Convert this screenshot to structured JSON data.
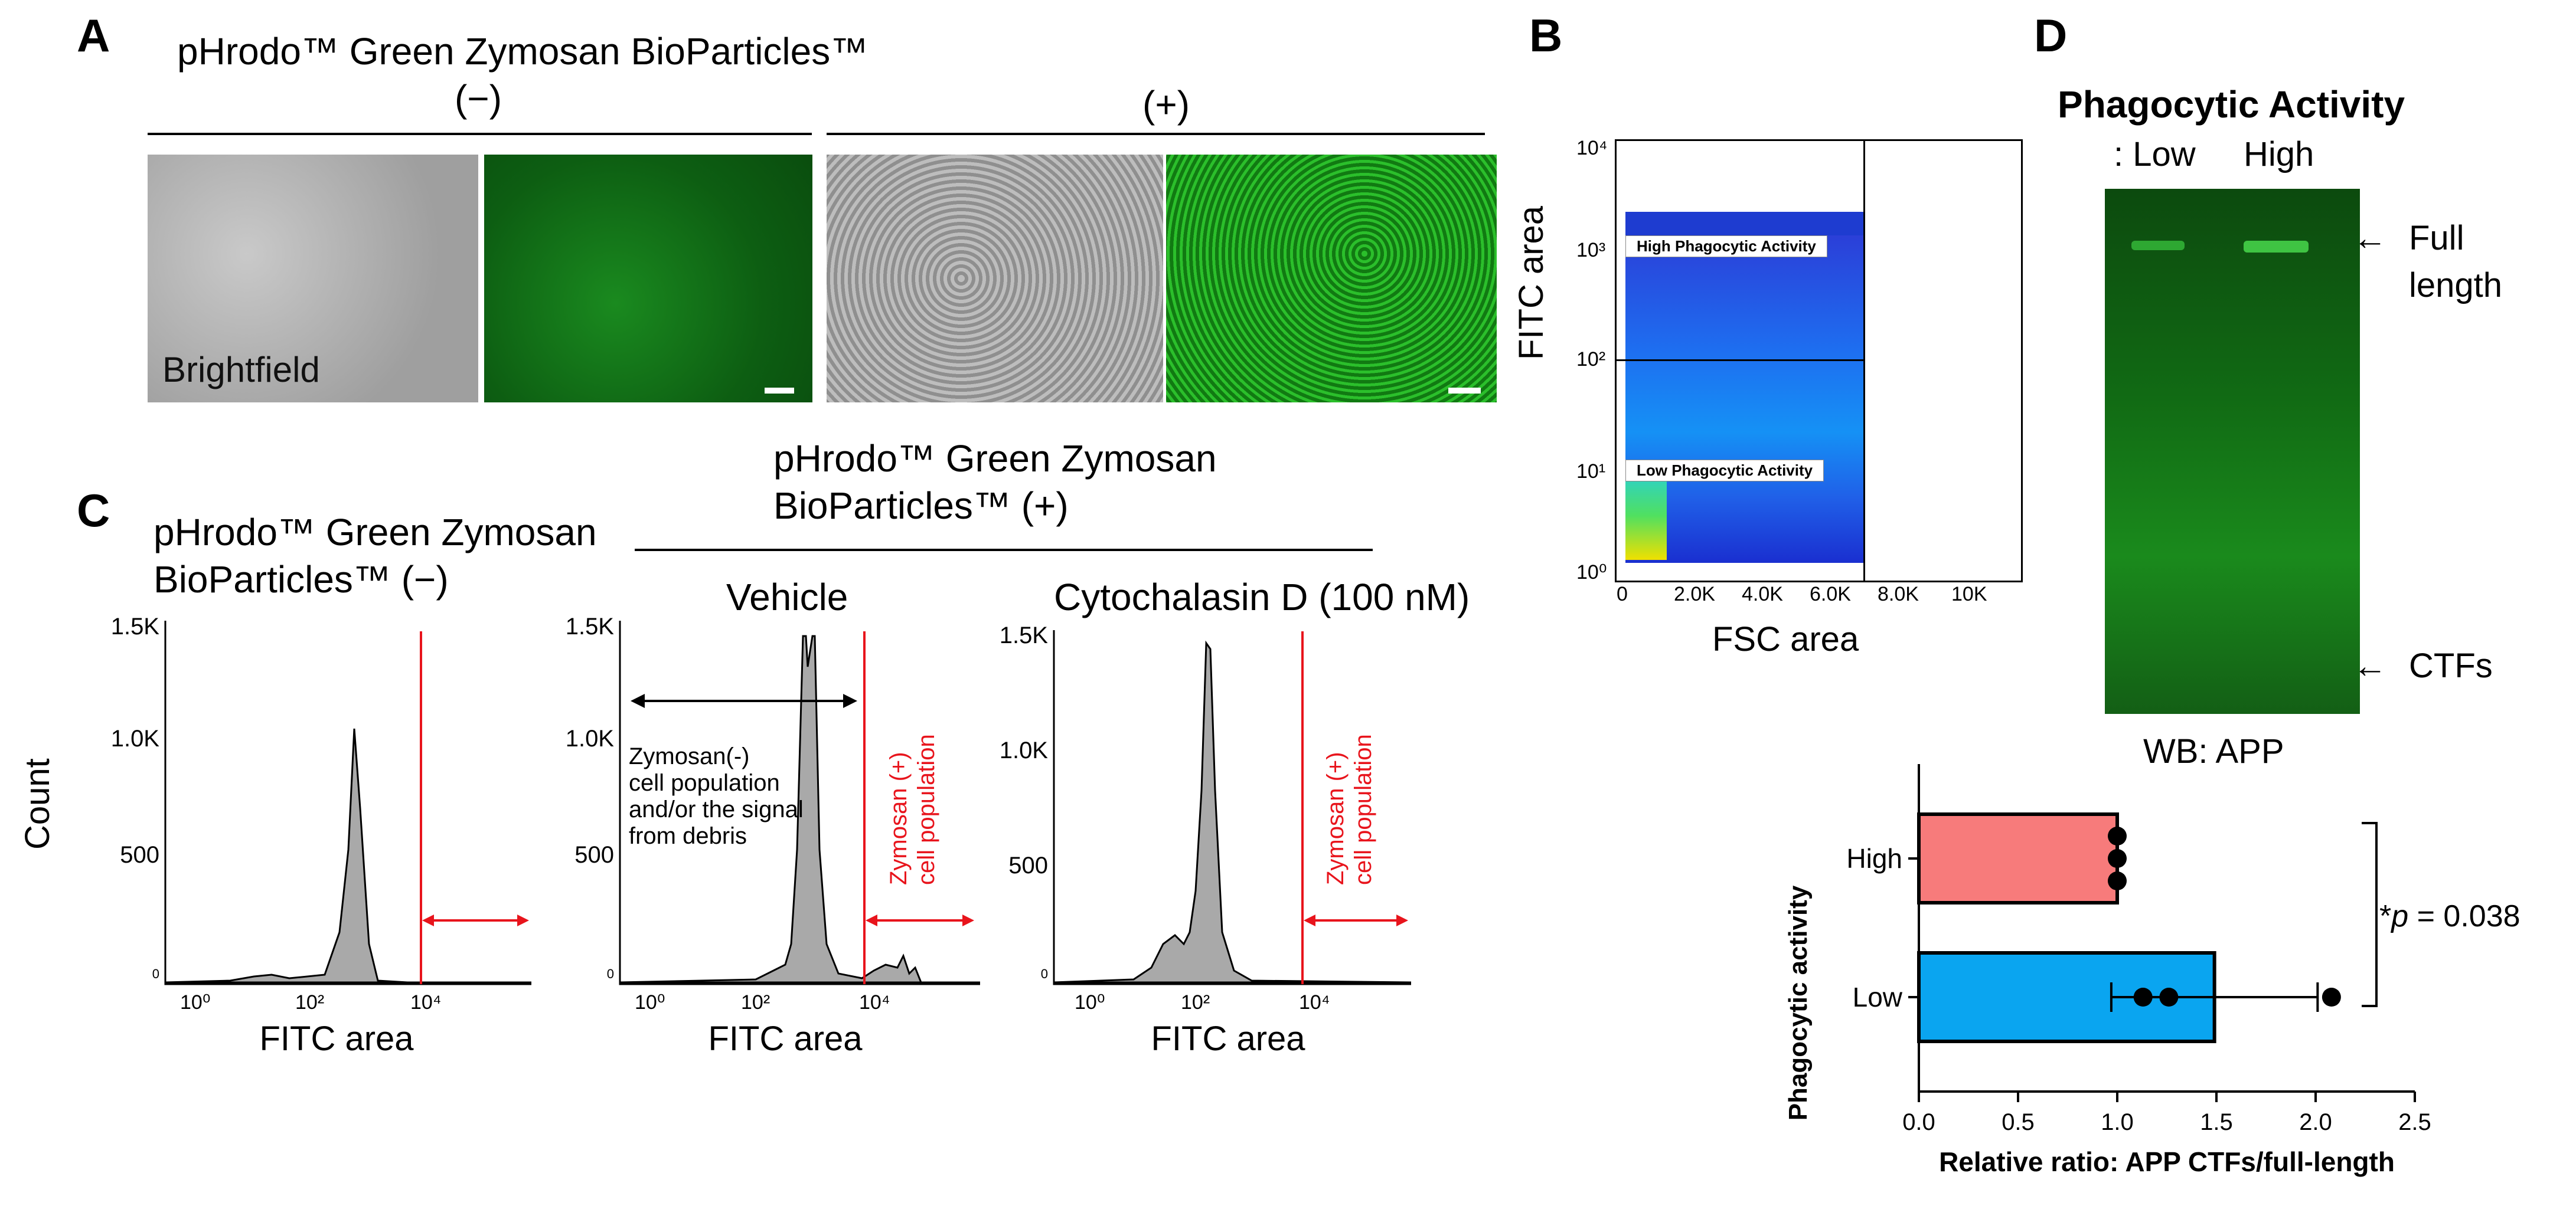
{
  "panels": {
    "a": "A",
    "b": "B",
    "c": "C",
    "d": "D"
  },
  "panel_a": {
    "reagent": "pHrodo™ Green Zymosan BioParticles™",
    "minus": "(−)",
    "plus": "(+)",
    "brightfield": "Brightfield"
  },
  "panel_b": {
    "xlabel": "FSC area",
    "ylabel": "FITC area",
    "y_ticks": [
      "10⁴",
      "10³",
      "10²",
      "10¹",
      "10⁰"
    ],
    "x_ticks": [
      "0",
      "2.0K",
      "4.0K",
      "6.0K",
      "8.0K",
      "10K"
    ],
    "gate_high": "High Phagocytic Activity",
    "gate_low": "Low Phagocytic Activity"
  },
  "panel_c": {
    "title_neg_1": "pHrodo™ Green Zymosan",
    "title_neg_2": "BioParticles™ (−)",
    "title_pos_1": "pHrodo™ Green Zymosan",
    "title_pos_2": "BioParticles™     (+)",
    "vehicle": "Vehicle",
    "cytochalasin": "Cytochalasin D (100 nM)",
    "ylabel": "Count",
    "xlabel": "FITC area",
    "y_ticks": [
      "1.5K",
      "1.0K",
      "500",
      "0"
    ],
    "x_ticks": [
      "10⁰",
      "10²",
      "10⁴"
    ],
    "zymo_neg_1": "Zymosan(-)",
    "zymo_neg_2": " cell population",
    "zymo_neg_3": "and/or the signal",
    "zymo_neg_4": "from debris",
    "zymo_pos_1": "Zymosan (+)",
    "zymo_pos_2": "cell population",
    "gate_color": "#e8141c"
  },
  "panel_d": {
    "title": "Phagocytic Activity",
    "lane_prefix": ": Low",
    "lane_high": "High",
    "full_1": "Full",
    "full_2": "length",
    "ctfs": "CTFs",
    "wb": "WB: APP",
    "arrow": "←",
    "pvalue_prefix": "*",
    "pvalue_p": "p",
    "pvalue_rest": " = 0.038"
  },
  "chart_data": {
    "type": "bar",
    "orientation": "horizontal",
    "categories": [
      "High",
      "Low"
    ],
    "values": [
      1.0,
      1.49
    ],
    "errors": [
      0.0,
      0.52
    ],
    "points": [
      [
        1.0,
        1.0,
        1.0
      ],
      [
        1.13,
        1.26,
        2.08
      ]
    ],
    "colors": [
      "#f77b7b",
      "#0aa5f0"
    ],
    "xlabel": "Relative ratio: APP CTFs/full-length",
    "ylabel": "Phagocytic activity",
    "xlim": [
      0,
      2.5
    ],
    "xticks": [
      "0.0",
      "0.5",
      "1.0",
      "1.5",
      "2.0",
      "2.5"
    ]
  }
}
